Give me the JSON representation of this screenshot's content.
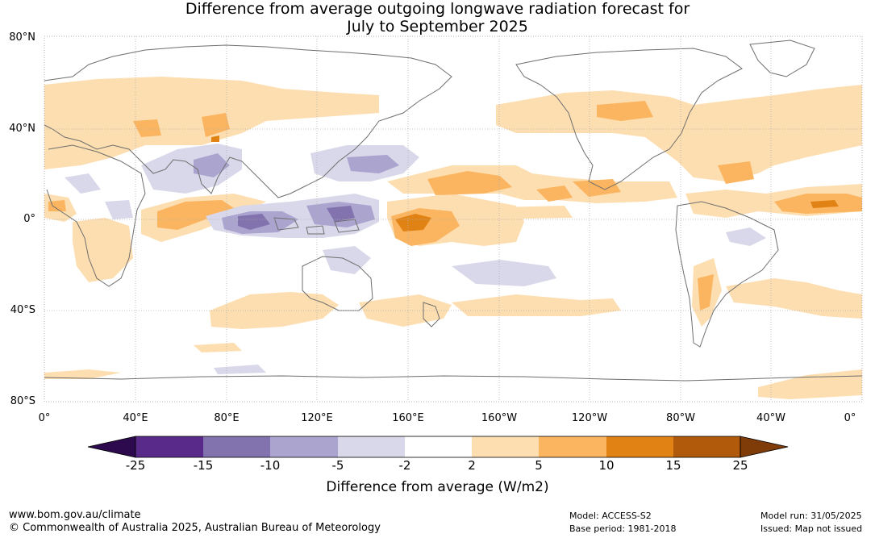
{
  "title": {
    "line1": "Difference from average outgoing longwave radiation forecast for",
    "line2": "July to September 2025"
  },
  "map": {
    "lat_labels": [
      "80°N",
      "40°N",
      "0°",
      "40°S",
      "80°S"
    ],
    "lon_labels": [
      "0°",
      "40°E",
      "80°E",
      "120°E",
      "160°E",
      "160°W",
      "120°W",
      "80°W",
      "40°W",
      "0°"
    ],
    "colors": {
      "land_outline": "#6e6e6e",
      "grid": "#b0b0b0"
    }
  },
  "colorbar": {
    "title": "Difference from average (W/m2)",
    "ticks": [
      "-25",
      "-15",
      "-10",
      "-5",
      "-2",
      "2",
      "5",
      "10",
      "15",
      "25"
    ],
    "colors": [
      "#2d0a4e",
      "#5a2a8a",
      "#8272ad",
      "#aba4cf",
      "#d9d8ea",
      "#ffffff",
      "#fddeb0",
      "#fbb561",
      "#e08314",
      "#b25a0b",
      "#7f3b08"
    ]
  },
  "footer": {
    "website": "www.bom.gov.au/climate",
    "copyright": "© Commonwealth of Australia 2025, Australian Bureau of Meteorology",
    "model": "Model: ACCESS-S2",
    "base_period": "Base period: 1981-2018",
    "model_run": "Model run: 31/05/2025",
    "issued": "Issued: Map not issued"
  }
}
